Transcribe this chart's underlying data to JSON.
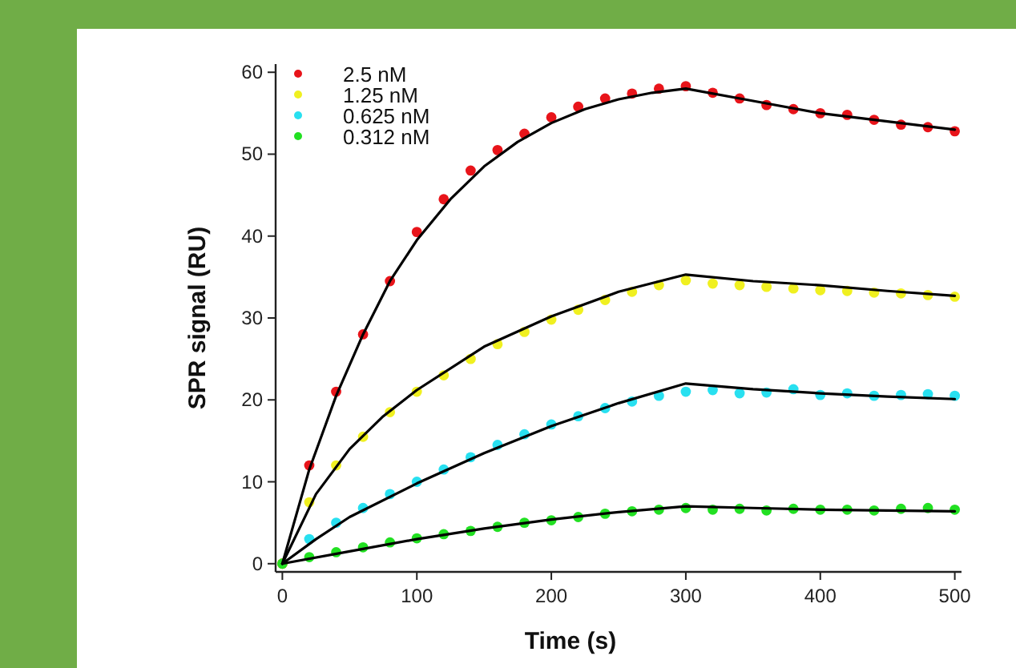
{
  "chart_data": {
    "type": "scatter",
    "xlabel": "Time (s)",
    "ylabel": "SPR signal (RU)",
    "xlim": [
      -5,
      505
    ],
    "ylim": [
      -1,
      61
    ],
    "xticks": [
      0,
      100,
      200,
      300,
      400,
      500
    ],
    "yticks": [
      0,
      10,
      20,
      30,
      40,
      50,
      60
    ],
    "grid": false,
    "legend": "top left",
    "marker": "circle",
    "series": [
      {
        "name": "2.5 nM",
        "color": "#e8141a",
        "x": [
          0,
          20,
          40,
          60,
          80,
          100,
          120,
          140,
          160,
          180,
          200,
          220,
          240,
          260,
          280,
          300,
          320,
          340,
          360,
          380,
          400,
          420,
          440,
          460,
          480,
          500
        ],
        "values": [
          0,
          12,
          21,
          28,
          34.5,
          40.5,
          44.5,
          48,
          50.5,
          52.5,
          54.5,
          55.8,
          56.8,
          57.4,
          58,
          58.3,
          57.5,
          56.8,
          56,
          55.5,
          55,
          54.8,
          54.2,
          53.6,
          53.3,
          52.8
        ]
      },
      {
        "name": "1.25 nM",
        "color": "#f0f020",
        "x": [
          0,
          20,
          40,
          60,
          80,
          100,
          120,
          140,
          160,
          180,
          200,
          220,
          240,
          260,
          280,
          300,
          320,
          340,
          360,
          380,
          400,
          420,
          440,
          460,
          480,
          500
        ],
        "values": [
          0,
          7.5,
          12,
          15.5,
          18.5,
          21,
          23,
          25,
          26.8,
          28.3,
          29.8,
          31,
          32.2,
          33.2,
          34,
          34.6,
          34.2,
          34,
          33.8,
          33.6,
          33.4,
          33.3,
          33.1,
          33,
          32.8,
          32.6
        ]
      },
      {
        "name": "0.625 nM",
        "color": "#28e0f0",
        "x": [
          20,
          40,
          60,
          80,
          100,
          120,
          140,
          160,
          180,
          200,
          220,
          240,
          260,
          280,
          300,
          320,
          340,
          360,
          380,
          400,
          420,
          440,
          460,
          480,
          500
        ],
        "values": [
          3,
          5,
          6.8,
          8.5,
          10,
          11.5,
          13,
          14.5,
          15.8,
          17,
          18,
          19,
          19.8,
          20.5,
          21,
          21.2,
          20.8,
          20.9,
          21.3,
          20.6,
          20.8,
          20.5,
          20.6,
          20.7,
          20.5
        ]
      },
      {
        "name": "0.312 nM",
        "color": "#22e022",
        "x": [
          0,
          20,
          40,
          60,
          80,
          100,
          120,
          140,
          160,
          180,
          200,
          220,
          240,
          260,
          280,
          300,
          320,
          340,
          360,
          380,
          400,
          420,
          440,
          460,
          480,
          500
        ],
        "values": [
          0,
          0.8,
          1.4,
          2,
          2.6,
          3.1,
          3.6,
          4,
          4.5,
          5,
          5.3,
          5.7,
          6.1,
          6.4,
          6.6,
          6.8,
          6.6,
          6.7,
          6.5,
          6.7,
          6.6,
          6.6,
          6.5,
          6.7,
          6.8,
          6.6
        ]
      },
      {
        "type": "line",
        "marker": "none",
        "color": "#000000",
        "x": [
          0,
          20,
          40,
          60,
          80,
          100,
          125,
          150,
          175,
          200,
          225,
          250,
          275,
          300,
          350,
          400,
          450,
          500
        ],
        "values": [
          0,
          11.5,
          20.5,
          28,
          34.5,
          39.5,
          44.5,
          48.5,
          51.5,
          53.8,
          55.5,
          56.7,
          57.5,
          58,
          56.5,
          55,
          54,
          53
        ]
      },
      {
        "type": "line",
        "marker": "none",
        "color": "#000000",
        "x": [
          0,
          25,
          50,
          75,
          100,
          150,
          200,
          250,
          300,
          350,
          400,
          450,
          500
        ],
        "values": [
          0,
          8.5,
          14,
          18,
          21.2,
          26.5,
          30.2,
          33.2,
          35.3,
          34.5,
          34,
          33.3,
          32.7
        ]
      },
      {
        "type": "line",
        "marker": "none",
        "color": "#000000",
        "x": [
          0,
          25,
          50,
          100,
          150,
          200,
          250,
          300,
          350,
          400,
          450,
          500
        ],
        "values": [
          0,
          3,
          5.7,
          9.8,
          13.5,
          16.8,
          19.6,
          22,
          21.3,
          20.8,
          20.4,
          20.1
        ]
      },
      {
        "type": "line",
        "marker": "none",
        "color": "#000000",
        "x": [
          0,
          50,
          100,
          150,
          200,
          250,
          300,
          350,
          400,
          450,
          500
        ],
        "values": [
          0,
          1.5,
          3,
          4.3,
          5.4,
          6.3,
          7,
          6.8,
          6.6,
          6.5,
          6.4
        ]
      }
    ]
  }
}
